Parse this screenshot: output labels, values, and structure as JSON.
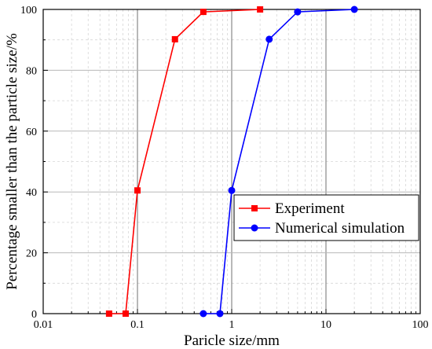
{
  "chart_data": {
    "type": "line",
    "title": "",
    "xlabel": "Paricle size/mm",
    "ylabel": "Percentage smaller than the particle size/%",
    "xscale": "log",
    "xlim": [
      0.01,
      100
    ],
    "ylim": [
      0,
      100
    ],
    "xticks": [
      "0.01",
      "0.1",
      "1",
      "10",
      "100"
    ],
    "yticks": [
      "0",
      "20",
      "40",
      "60",
      "80",
      "100"
    ],
    "grid": true,
    "legend_position": "lower-right",
    "series": [
      {
        "name": "Experiment",
        "color": "#ff0000",
        "marker": "square",
        "x": [
          0.05,
          0.075,
          0.1,
          0.25,
          0.5,
          2
        ],
        "y": [
          0,
          0,
          40.5,
          90.2,
          99.2,
          100
        ]
      },
      {
        "name": "Numerical simulation",
        "color": "#0000ff",
        "marker": "circle",
        "x": [
          0.5,
          0.75,
          1,
          2.5,
          5,
          20
        ],
        "y": [
          0,
          0,
          40.5,
          90.2,
          99.2,
          100
        ]
      }
    ]
  }
}
